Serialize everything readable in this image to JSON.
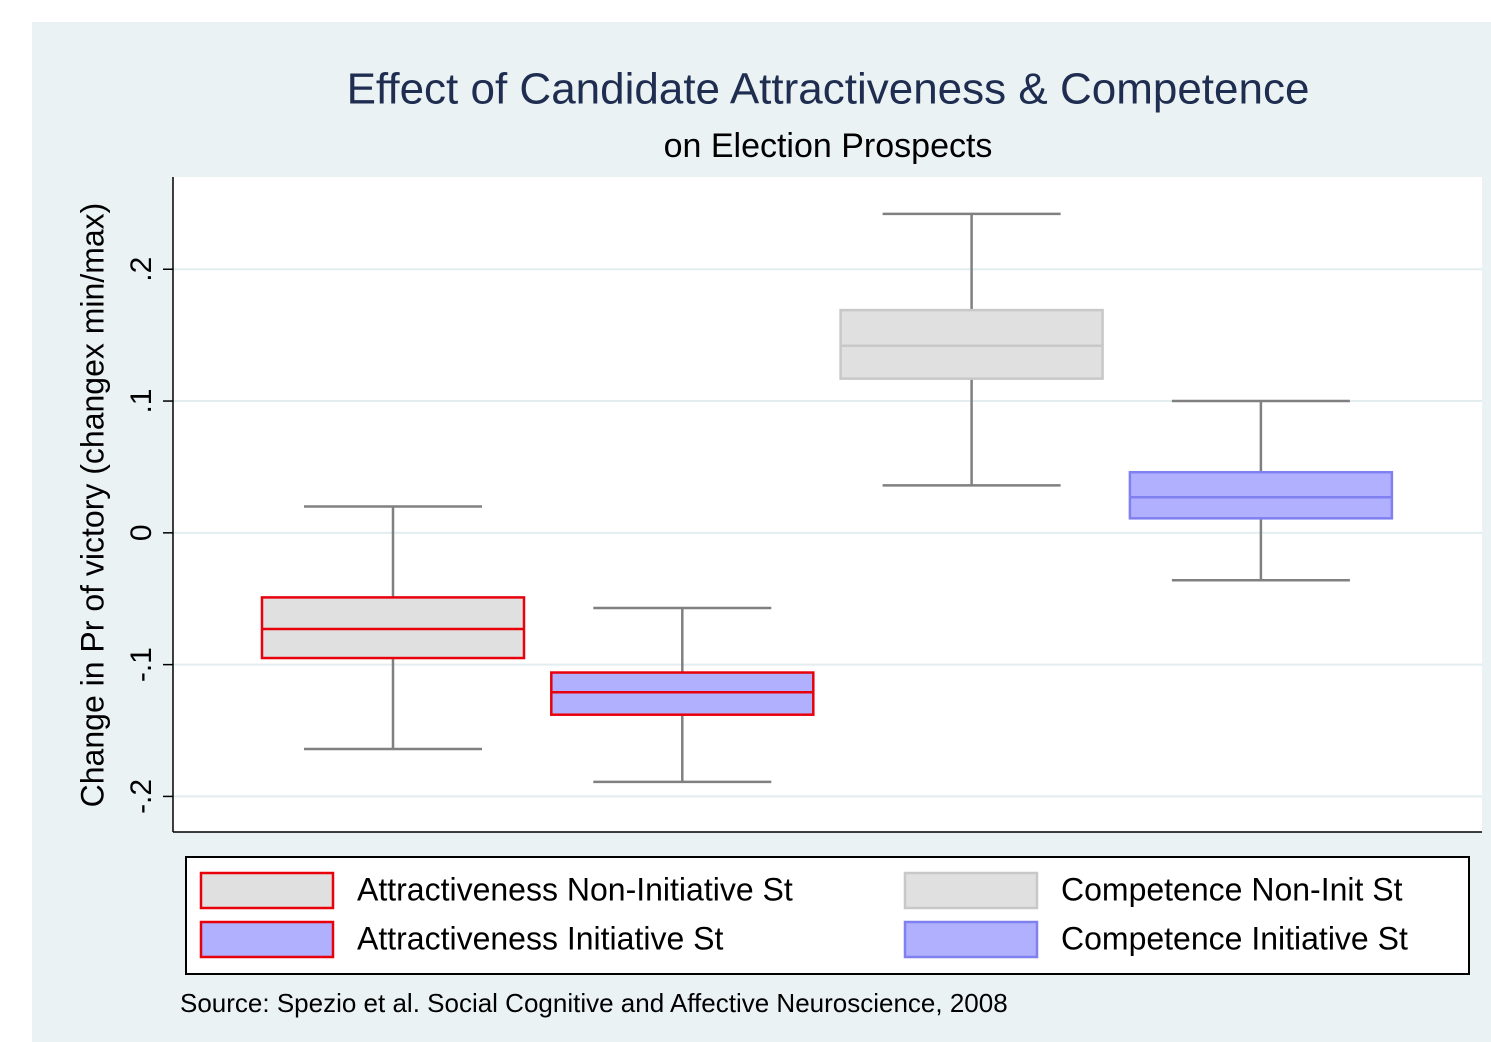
{
  "chart_data": {
    "type": "box",
    "title": "Effect of Candidate Attractiveness & Competence",
    "subtitle": "on Election Prospects",
    "y_label": "Change in Pr of victory (changex min/max)",
    "source": "Source:  Spezio et al. Social Cognitive and Affective Neuroscience, 2008",
    "ylim": [
      -0.227,
      0.27
    ],
    "yticks": [
      {
        "value": -0.2,
        "label": "-.2"
      },
      {
        "value": -0.1,
        "label": "-.1"
      },
      0,
      {
        "value": 0.1,
        "label": ".1"
      },
      {
        "value": 0.2,
        "label": ".2"
      }
    ],
    "grid": true,
    "series": [
      {
        "name": "Attractiveness Non-Initiative St",
        "color": "#e0e0e0",
        "edge_color": "#e8000b",
        "whisker_low": -0.164,
        "q1": -0.095,
        "median": -0.073,
        "q3": -0.049,
        "whisker_high": 0.02
      },
      {
        "name": "Attractiveness Initiative St",
        "color": "#b0b0ff",
        "edge_color": "#e8000b",
        "whisker_low": -0.189,
        "q1": -0.138,
        "median": -0.121,
        "q3": -0.106,
        "whisker_high": -0.057
      },
      {
        "name": "Competence Non-Init St",
        "color": "#e0e0e0",
        "edge_color": "#c8c8c8",
        "whisker_low": 0.036,
        "q1": 0.117,
        "median": 0.142,
        "q3": 0.169,
        "whisker_high": 0.242
      },
      {
        "name": "Competence Initiative St",
        "color": "#b0b0ff",
        "edge_color": "#8080f0",
        "whisker_low": -0.036,
        "q1": 0.011,
        "median": 0.027,
        "q3": 0.046,
        "whisker_high": 0.1
      }
    ]
  }
}
